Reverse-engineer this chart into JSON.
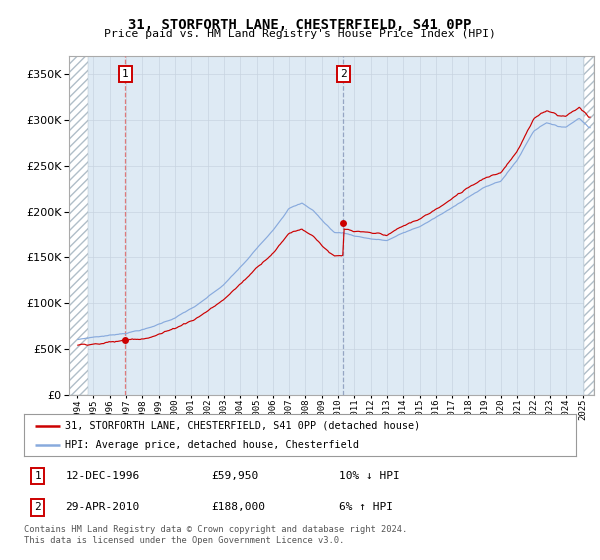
{
  "title": "31, STORFORTH LANE, CHESTERFIELD, S41 0PP",
  "subtitle": "Price paid vs. HM Land Registry's House Price Index (HPI)",
  "legend_line1": "31, STORFORTH LANE, CHESTERFIELD, S41 0PP (detached house)",
  "legend_line2": "HPI: Average price, detached house, Chesterfield",
  "annotation1_date": "12-DEC-1996",
  "annotation1_price": "£59,950",
  "annotation1_pct": "10% ↓ HPI",
  "annotation2_date": "29-APR-2010",
  "annotation2_price": "£188,000",
  "annotation2_pct": "6% ↑ HPI",
  "footer": "Contains HM Land Registry data © Crown copyright and database right 2024.\nThis data is licensed under the Open Government Licence v3.0.",
  "sale_color": "#cc0000",
  "hpi_color": "#88aadd",
  "vline1_color": "#dd6666",
  "vline2_color": "#8899bb",
  "bg_color": "#deeaf4",
  "hatch_color": "#c0ccd8",
  "grid_color": "#c8d4e0",
  "ylim_min": 0,
  "ylim_max": 370000,
  "yticks": [
    0,
    50000,
    100000,
    150000,
    200000,
    250000,
    300000,
    350000
  ],
  "sale1_x": 1996.96,
  "sale1_y": 59950,
  "sale2_x": 2010.33,
  "sale2_y": 188000,
  "xmin": 1993.5,
  "xmax": 2025.7,
  "hatch_left_end": 1994.67,
  "hatch_right_start": 2025.08
}
